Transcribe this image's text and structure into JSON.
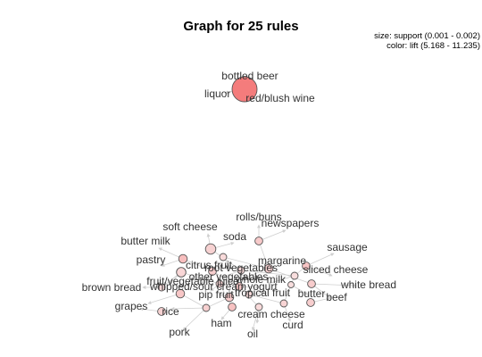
{
  "title": "Graph for 25 rules",
  "legend": {
    "size": "size: support (0.001 - 0.002)",
    "color": "color: lift (5.168 - 11.235)"
  },
  "colors": {
    "high_lift": "#f47c7c",
    "low_lift": "#f8dede",
    "edge": "#cfcfcf",
    "stroke": "#555555"
  },
  "labels": {
    "bottled_beer": "bottled beer",
    "liquor": "liquor",
    "red_blush_wine": "red/blush wine",
    "rolls_buns": "rolls/buns",
    "newspapers": "newspapers",
    "soft_cheese": "soft cheese",
    "soda": "soda",
    "butter_milk": "butter milk",
    "sausage": "sausage",
    "pastry": "pastry",
    "citrus_fruit": "citrus fruit",
    "margarine": "margarine",
    "root_vegetables": "root vegetables",
    "sliced_cheese": "sliced cheese",
    "other_vegetables": "other vegetables",
    "whole_milk": "whole milk",
    "fruit_vegetable_juice": "fruit/vegetable juice",
    "whipped_sour_cream": "whipped/sour cream",
    "yogurt": "yogurt",
    "white_bread": "white bread",
    "brown_bread": "brown bread",
    "tropical_fruit": "tropical fruit",
    "butter": "butter",
    "pip_fruit": "pip fruit",
    "beef": "beef",
    "grapes": "grapes",
    "rice": "rice",
    "cream_cheese": "cream cheese",
    "ham": "ham",
    "curd": "curd",
    "pork": "pork",
    "oil": "oil"
  },
  "rules": [
    {
      "id": "r1",
      "lift": 11.235,
      "support": 0.002
    },
    {
      "id": "r2",
      "lift": 6.2,
      "support": 0.0012
    },
    {
      "id": "r3",
      "lift": 5.8,
      "support": 0.0015
    },
    {
      "id": "r4",
      "lift": 5.4,
      "support": 0.0011
    },
    {
      "id": "r5",
      "lift": 6.8,
      "support": 0.0013
    },
    {
      "id": "r6",
      "lift": 5.6,
      "support": 0.0014
    },
    {
      "id": "r7",
      "lift": 6.0,
      "support": 0.0012
    },
    {
      "id": "r8",
      "lift": 5.3,
      "support": 0.0011
    },
    {
      "id": "r9",
      "lift": 5.9,
      "support": 0.0013
    },
    {
      "id": "r10",
      "lift": 6.5,
      "support": 0.0012
    },
    {
      "id": "r11",
      "lift": 5.2,
      "support": 0.0011
    },
    {
      "id": "r12",
      "lift": 6.1,
      "support": 0.0012
    },
    {
      "id": "r13",
      "lift": 5.7,
      "support": 0.0011
    },
    {
      "id": "r14",
      "lift": 6.4,
      "support": 0.0013
    },
    {
      "id": "r15",
      "lift": 5.5,
      "support": 0.0011
    },
    {
      "id": "r16",
      "lift": 6.3,
      "support": 0.0012
    },
    {
      "id": "r17",
      "lift": 5.168,
      "support": 0.001
    },
    {
      "id": "r18",
      "lift": 5.9,
      "support": 0.0011
    },
    {
      "id": "r19",
      "lift": 6.6,
      "support": 0.0012
    },
    {
      "id": "r20",
      "lift": 5.4,
      "support": 0.0011
    },
    {
      "id": "r21",
      "lift": 6.0,
      "support": 0.0012
    },
    {
      "id": "r22",
      "lift": 5.7,
      "support": 0.0011
    },
    {
      "id": "r23",
      "lift": 6.2,
      "support": 0.0013
    },
    {
      "id": "r24",
      "lift": 5.3,
      "support": 0.0011
    },
    {
      "id": "r25",
      "lift": 5.8,
      "support": 0.0012
    }
  ]
}
